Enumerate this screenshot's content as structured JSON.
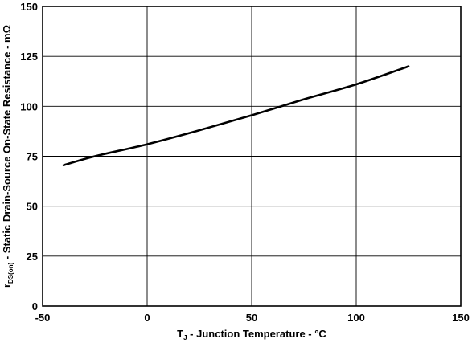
{
  "chart_data": {
    "type": "line",
    "title": "",
    "xlabel": {
      "symbol": "T",
      "subscript": "J",
      "text": " - Junction Temperature - °C"
    },
    "ylabel": {
      "symbol": "r",
      "subscript": "DS(on)",
      "text": " - Static Drain-Source On-State Resistance - mΩ"
    },
    "xlim": [
      -50,
      150
    ],
    "ylim": [
      0,
      150
    ],
    "xticks": [
      "-50",
      "0",
      "50",
      "100",
      "150"
    ],
    "yticks": [
      "0",
      "25",
      "50",
      "75",
      "100",
      "125",
      "150"
    ],
    "grid": true,
    "series": [
      {
        "x": [
          -40,
          -25,
          0,
          25,
          50,
          75,
          100,
          125
        ],
        "y": [
          70.5,
          75,
          81,
          88,
          95.5,
          103.5,
          111,
          120
        ]
      }
    ],
    "colors": {
      "line": "#000000",
      "grid": "#000000",
      "axis": "#000000"
    }
  }
}
